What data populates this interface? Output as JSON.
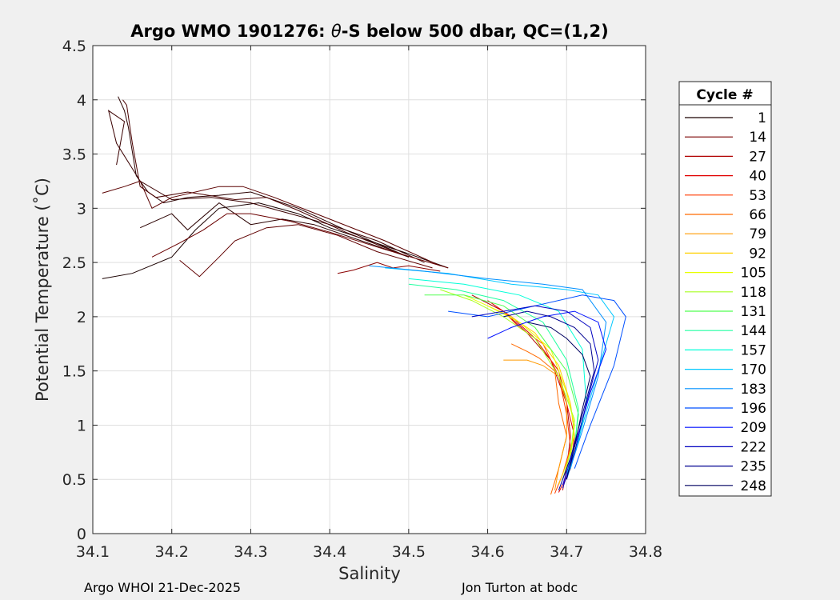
{
  "chart_data": {
    "type": "line",
    "title_prefix": "Argo WMO 1901276: ",
    "title_theta": "θ",
    "title_suffix": "-S below 500 dbar,  QC=(1,2)",
    "xlabel": "Salinity",
    "ylabel": "Potential Temperature (˚C)",
    "xlim": [
      34.1,
      34.8
    ],
    "ylim": [
      0,
      4.5
    ],
    "x_ticks": [
      34.1,
      34.2,
      34.3,
      34.4,
      34.5,
      34.6,
      34.7,
      34.8
    ],
    "x_tick_labels": [
      "34.1",
      "34.2",
      "34.3",
      "34.4",
      "34.5",
      "34.6",
      "34.7",
      "34.8"
    ],
    "y_ticks": [
      0,
      0.5,
      1,
      1.5,
      2,
      2.5,
      3,
      3.5,
      4,
      4.5
    ],
    "y_tick_labels": [
      "0",
      "0.5",
      "1",
      "1.5",
      "2",
      "2.5",
      "3",
      "3.5",
      "4",
      "4.5"
    ],
    "grid": true,
    "legend": {
      "title": "Cycle #",
      "position": "right",
      "entries": [
        {
          "label": "1",
          "color": "#1a0000"
        },
        {
          "label": "14",
          "color": "#7a0000"
        },
        {
          "label": "27",
          "color": "#b00000"
        },
        {
          "label": "40",
          "color": "#e00000"
        },
        {
          "label": "53",
          "color": "#ff3a00"
        },
        {
          "label": "66",
          "color": "#ff6a00"
        },
        {
          "label": "79",
          "color": "#ff9a00"
        },
        {
          "label": "92",
          "color": "#ffd000"
        },
        {
          "label": "105",
          "color": "#e8ff00"
        },
        {
          "label": "118",
          "color": "#a8ff20"
        },
        {
          "label": "131",
          "color": "#50ff50"
        },
        {
          "label": "144",
          "color": "#20ffa0"
        },
        {
          "label": "157",
          "color": "#00ffd8"
        },
        {
          "label": "170",
          "color": "#00c8ff"
        },
        {
          "label": "183",
          "color": "#0090ff"
        },
        {
          "label": "196",
          "color": "#0050ff"
        },
        {
          "label": "209",
          "color": "#0010ff"
        },
        {
          "label": "222",
          "color": "#0000c0"
        },
        {
          "label": "235",
          "color": "#000090"
        },
        {
          "label": "248",
          "color": "#000060"
        }
      ]
    },
    "series": [
      {
        "name": "early-1",
        "color": "#1a0000",
        "x": [
          34.112,
          34.15,
          34.2,
          34.23,
          34.26,
          34.31,
          34.36,
          34.4,
          34.45,
          34.5,
          34.55
        ],
        "y": [
          2.35,
          2.4,
          2.55,
          2.8,
          3.0,
          3.05,
          2.95,
          2.82,
          2.7,
          2.58,
          2.45
        ]
      },
      {
        "name": "early-2",
        "color": "#3a0000",
        "x": [
          34.13,
          34.14,
          34.12,
          34.13,
          34.16,
          34.2,
          34.25,
          34.3,
          34.35,
          34.4,
          34.46,
          34.52
        ],
        "y": [
          3.4,
          3.8,
          3.9,
          3.6,
          3.25,
          3.08,
          3.1,
          3.05,
          2.95,
          2.85,
          2.7,
          2.5
        ]
      },
      {
        "name": "early-3",
        "color": "#2a0000",
        "x": [
          34.132,
          34.14,
          34.145,
          34.155,
          34.17,
          34.19,
          34.22,
          34.26,
          34.3,
          34.36,
          34.42,
          34.5
        ],
        "y": [
          4.03,
          3.9,
          3.75,
          3.3,
          3.15,
          3.05,
          3.1,
          3.12,
          3.15,
          3.0,
          2.8,
          2.55
        ]
      },
      {
        "name": "early-4",
        "color": "#4a0000",
        "x": [
          34.138,
          34.143,
          34.15,
          34.16,
          34.18,
          34.22,
          34.28,
          34.32,
          34.36,
          34.42,
          34.5
        ],
        "y": [
          4.0,
          3.95,
          3.6,
          3.2,
          3.1,
          3.15,
          3.08,
          3.1,
          2.98,
          2.78,
          2.55
        ]
      },
      {
        "name": "early-5",
        "color": "#5a0000",
        "x": [
          34.112,
          34.14,
          34.16,
          34.175,
          34.2,
          34.26,
          34.29,
          34.33,
          34.4,
          34.47,
          34.54
        ],
        "y": [
          3.14,
          3.2,
          3.25,
          3.0,
          3.1,
          3.2,
          3.2,
          3.1,
          2.9,
          2.7,
          2.47
        ]
      },
      {
        "name": "early-6",
        "color": "#2a0000",
        "x": [
          34.16,
          34.2,
          34.22,
          34.26,
          34.3,
          34.34,
          34.38,
          34.44,
          34.5
        ],
        "y": [
          2.82,
          2.95,
          2.8,
          3.05,
          2.85,
          2.9,
          2.85,
          2.7,
          2.55
        ]
      },
      {
        "name": "early-7",
        "color": "#600000",
        "x": [
          34.21,
          34.235,
          34.26,
          34.28,
          34.32,
          34.36,
          34.41,
          34.46,
          34.53
        ],
        "y": [
          2.52,
          2.37,
          2.55,
          2.7,
          2.82,
          2.85,
          2.75,
          2.6,
          2.45
        ]
      },
      {
        "name": "early-8",
        "color": "#6a0000",
        "x": [
          34.175,
          34.21,
          34.24,
          34.27,
          34.3,
          34.35,
          34.4,
          34.47,
          34.55
        ],
        "y": [
          2.55,
          2.68,
          2.8,
          2.95,
          2.95,
          2.88,
          2.78,
          2.62,
          2.45
        ]
      },
      {
        "name": "early-9",
        "color": "#8a0000",
        "x": [
          34.41,
          34.43,
          34.46,
          34.48,
          34.5,
          34.54
        ],
        "y": [
          2.4,
          2.43,
          2.5,
          2.45,
          2.47,
          2.42
        ]
      },
      {
        "name": "c27",
        "color": "#b00000",
        "x": [
          34.58,
          34.62,
          34.65,
          34.68,
          34.7,
          34.705,
          34.7,
          34.695
        ],
        "y": [
          2.2,
          2.05,
          1.85,
          1.6,
          1.2,
          0.9,
          0.6,
          0.4
        ]
      },
      {
        "name": "c40",
        "color": "#e00000",
        "x": [
          34.6,
          34.63,
          34.66,
          34.69,
          34.7,
          34.71,
          34.705,
          34.69
        ],
        "y": [
          2.15,
          2.0,
          1.8,
          1.5,
          1.2,
          0.9,
          0.6,
          0.38
        ]
      },
      {
        "name": "c53",
        "color": "#ff3a00",
        "x": [
          34.62,
          34.64,
          34.67,
          34.69,
          34.7,
          34.705,
          34.695,
          34.685
        ],
        "y": [
          2.05,
          1.9,
          1.75,
          1.45,
          1.1,
          0.8,
          0.55,
          0.37
        ]
      },
      {
        "name": "c66",
        "color": "#ff6a00",
        "x": [
          34.63,
          34.65,
          34.665,
          34.685,
          34.69,
          34.7,
          34.69,
          34.68
        ],
        "y": [
          1.75,
          1.68,
          1.62,
          1.5,
          1.2,
          0.9,
          0.6,
          0.36
        ]
      },
      {
        "name": "c79",
        "color": "#ff9a00",
        "x": [
          34.62,
          34.65,
          34.67,
          34.69,
          34.7,
          34.7,
          34.69,
          34.685
        ],
        "y": [
          1.6,
          1.6,
          1.55,
          1.45,
          1.2,
          0.9,
          0.6,
          0.4
        ]
      },
      {
        "name": "c92",
        "color": "#ffd000",
        "x": [
          34.6,
          34.63,
          34.66,
          34.69,
          34.705,
          34.71,
          34.7,
          34.69
        ],
        "y": [
          2.1,
          2.0,
          1.85,
          1.55,
          1.2,
          0.9,
          0.65,
          0.45
        ]
      },
      {
        "name": "c105",
        "color": "#e8ff00",
        "x": [
          34.57,
          34.6,
          34.64,
          34.68,
          34.7,
          34.71,
          34.705,
          34.695
        ],
        "y": [
          2.2,
          2.1,
          1.95,
          1.7,
          1.3,
          1.0,
          0.7,
          0.5
        ]
      },
      {
        "name": "c118",
        "color": "#a8ff20",
        "x": [
          34.54,
          34.58,
          34.62,
          34.66,
          34.69,
          34.71,
          34.705,
          34.695
        ],
        "y": [
          2.25,
          2.15,
          2.0,
          1.8,
          1.45,
          1.05,
          0.75,
          0.5
        ]
      },
      {
        "name": "c131",
        "color": "#50ff50",
        "x": [
          34.52,
          34.57,
          34.62,
          34.66,
          34.7,
          34.715,
          34.71,
          34.7
        ],
        "y": [
          2.2,
          2.2,
          2.1,
          1.9,
          1.5,
          1.1,
          0.8,
          0.55
        ]
      },
      {
        "name": "c144",
        "color": "#20ffa0",
        "x": [
          34.5,
          34.56,
          34.62,
          34.67,
          34.7,
          34.715,
          34.71,
          34.7
        ],
        "y": [
          2.3,
          2.25,
          2.15,
          1.95,
          1.6,
          1.15,
          0.8,
          0.55
        ]
      },
      {
        "name": "c157",
        "color": "#00ffd8",
        "x": [
          34.5,
          34.57,
          34.64,
          34.69,
          34.72,
          34.725,
          34.715,
          34.7
        ],
        "y": [
          2.35,
          2.3,
          2.2,
          2.05,
          1.7,
          1.2,
          0.85,
          0.55
        ]
      },
      {
        "name": "c170",
        "color": "#00c8ff",
        "x": [
          34.47,
          34.55,
          34.63,
          34.7,
          34.74,
          34.76,
          34.74,
          34.72,
          34.705
        ],
        "y": [
          2.45,
          2.4,
          2.3,
          2.25,
          2.2,
          2.0,
          1.5,
          1.0,
          0.6
        ]
      },
      {
        "name": "c183",
        "color": "#0090ff",
        "x": [
          34.45,
          34.52,
          34.6,
          34.67,
          34.72,
          34.75,
          34.74,
          34.72,
          34.7
        ],
        "y": [
          2.47,
          2.42,
          2.35,
          2.3,
          2.25,
          1.95,
          1.45,
          0.95,
          0.5
        ]
      },
      {
        "name": "c196",
        "color": "#0050ff",
        "x": [
          34.55,
          34.6,
          34.66,
          34.72,
          34.76,
          34.775,
          34.76,
          34.73,
          34.71
        ],
        "y": [
          2.05,
          2.0,
          2.1,
          2.2,
          2.15,
          2.0,
          1.55,
          1.0,
          0.6
        ]
      },
      {
        "name": "c209",
        "color": "#0010ff",
        "x": [
          34.6,
          34.63,
          34.67,
          34.71,
          34.74,
          34.75,
          34.73,
          34.71,
          34.695
        ],
        "y": [
          1.8,
          1.9,
          2.0,
          2.05,
          1.95,
          1.7,
          1.3,
          0.8,
          0.45
        ]
      },
      {
        "name": "c222",
        "color": "#0000c0",
        "x": [
          34.58,
          34.62,
          34.66,
          34.7,
          34.73,
          34.74,
          34.725,
          34.71,
          34.695
        ],
        "y": [
          2.0,
          2.05,
          2.1,
          2.05,
          1.9,
          1.6,
          1.2,
          0.75,
          0.42
        ]
      },
      {
        "name": "c235",
        "color": "#000090",
        "x": [
          34.62,
          34.65,
          34.68,
          34.71,
          34.73,
          34.735,
          34.72,
          34.705,
          34.69
        ],
        "y": [
          2.0,
          2.05,
          2.0,
          1.9,
          1.75,
          1.5,
          1.1,
          0.7,
          0.4
        ]
      },
      {
        "name": "c248",
        "color": "#000060",
        "x": [
          34.65,
          34.68,
          34.7,
          34.72,
          34.73,
          34.72,
          34.71,
          34.7
        ],
        "y": [
          1.95,
          1.9,
          1.8,
          1.65,
          1.45,
          1.15,
          0.8,
          0.5
        ]
      }
    ]
  },
  "footer": {
    "left": "Argo WHOI 21-Dec-2025",
    "right": "Jon Turton at bodc"
  }
}
